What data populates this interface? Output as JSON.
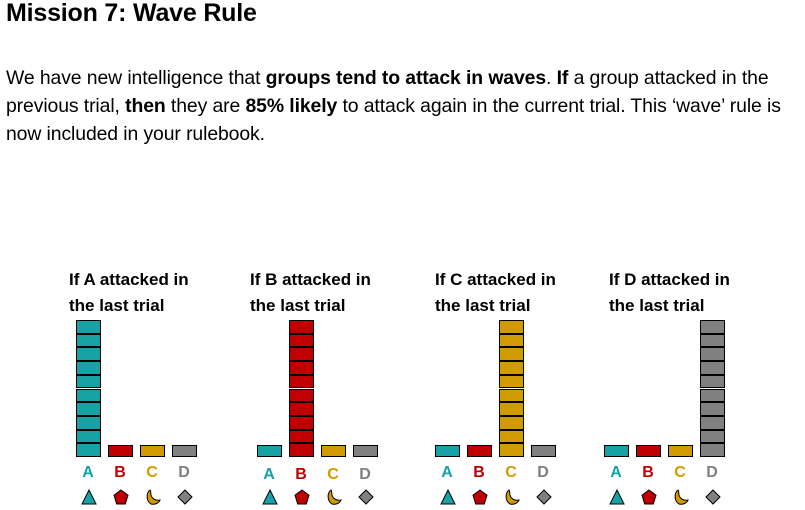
{
  "slide": {
    "title": "Mission 7: Wave Rule",
    "intro": [
      {
        "text": "We have new intelligence that ",
        "bold": false
      },
      {
        "text": "groups tend to attack in waves",
        "bold": true
      },
      {
        "text": ". ",
        "bold": false
      },
      {
        "text": "If",
        "bold": true
      },
      {
        "text": " a group attacked in the previous trial, ",
        "bold": false
      },
      {
        "text": "then",
        "bold": true
      },
      {
        "text": " they are ",
        "bold": false
      },
      {
        "text": "85% likely",
        "bold": true
      },
      {
        "text": " to attack again in the current trial. This ‘wave’ rule is now included in your rulebook.",
        "bold": false
      }
    ]
  },
  "colors": {
    "A": "#17a2a6",
    "B": "#c00000",
    "C": "#d19b00",
    "D": "#808080"
  },
  "groups": [
    {
      "letter": "A",
      "symbol": "triangle-icon"
    },
    {
      "letter": "B",
      "symbol": "pentagon-icon"
    },
    {
      "letter": "C",
      "symbol": "crescent-icon"
    },
    {
      "letter": "D",
      "symbol": "diamond-icon"
    }
  ],
  "panels": [
    {
      "title_line1": "If A attacked in",
      "title_line2": "the last trial",
      "highlight": "A",
      "counts": {
        "A": 9,
        "B": 0,
        "C": 0,
        "D": 0
      }
    },
    {
      "title_line1": "If B attacked in",
      "title_line2": "the last trial",
      "highlight": "B",
      "counts": {
        "A": 0,
        "B": 9,
        "C": 0,
        "D": 0
      }
    },
    {
      "title_line1": "If C attacked in",
      "title_line2": "the last trial",
      "highlight": "C",
      "counts": {
        "A": 0,
        "B": 0,
        "C": 9,
        "D": 0
      }
    },
    {
      "title_line1": "If D attacked in",
      "title_line2": "the last trial",
      "highlight": "D",
      "counts": {
        "A": 0,
        "B": 0,
        "C": 0,
        "D": 9
      }
    }
  ]
}
